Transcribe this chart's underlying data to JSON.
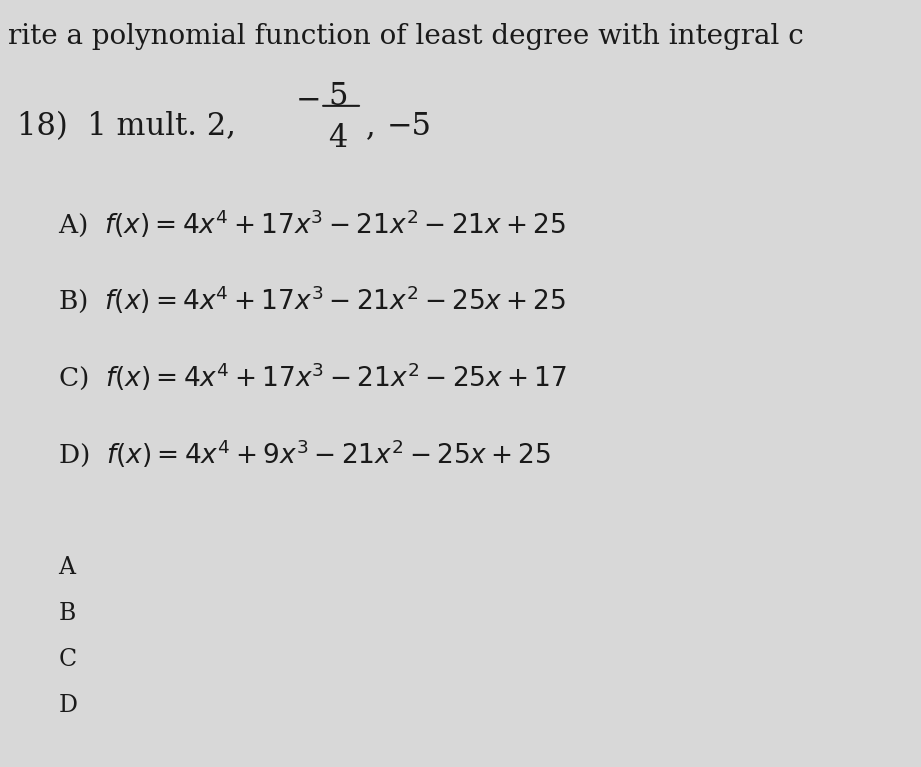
{
  "title_text": "rite a polynomial function of least degree with integral c",
  "problem_number": "18)",
  "problem_text": "1 mult. 2,",
  "fraction_num": "5",
  "fraction_den": "4",
  "neg_sign": "−",
  "last_val": "−5",
  "options": [
    {
      "letter": "A)",
      "formula": "$f(x)=4x^4+17x^3-21x^2-21x+25$"
    },
    {
      "letter": "B)",
      "formula": "$f(x)=4x^4+17x^3-21x^2-25x+25$"
    },
    {
      "letter": "C)",
      "formula": "$f(x)=4x^4+17x^3-21x^2-25x+17$"
    },
    {
      "letter": "D)",
      "formula": "$f(x)=4x^4+9x^3-21x^2-25x+25$"
    }
  ],
  "answer_letters": [
    "A",
    "B",
    "C",
    "D"
  ],
  "bg_color": "#d8d8d8",
  "text_color": "#1a1a1a",
  "title_fontsize": 20,
  "option_fontsize": 19,
  "answer_fontsize": 17
}
